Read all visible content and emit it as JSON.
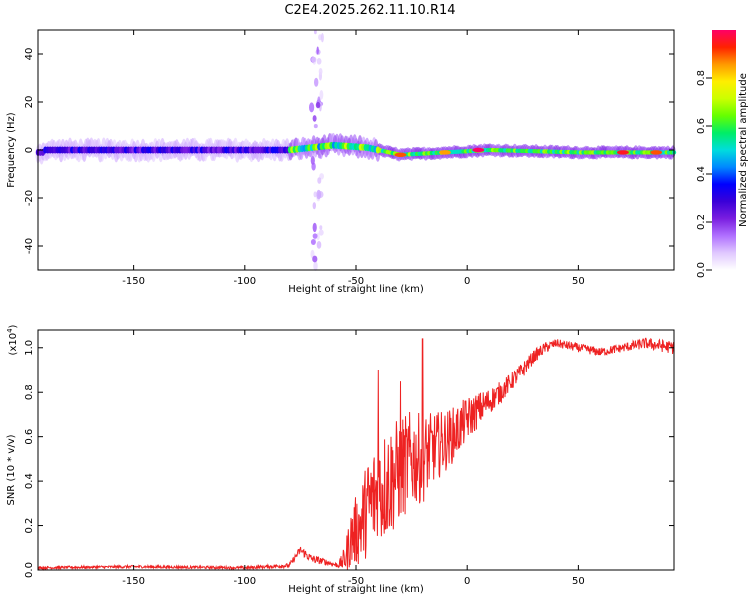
{
  "title": "C2E4.2025.262.11.10.R14",
  "chart_data": [
    {
      "type": "heatmap",
      "xlabel": "Height of straight line (km)",
      "ylabel": "Frequency (Hz)",
      "xlim": [
        -193,
        93
      ],
      "ylim": [
        -50,
        50
      ],
      "xticks": [
        -150,
        -100,
        -50,
        0,
        50
      ],
      "yticks": [
        -40,
        -20,
        0,
        20,
        40
      ],
      "colorbar": {
        "label": "Normalized spectral amplitude",
        "range": [
          0,
          1
        ],
        "ticks": [
          0.0,
          0.2,
          0.4,
          0.6,
          0.8
        ],
        "colors": [
          "#ffffff",
          "#e0c8ff",
          "#b070ff",
          "#7a1ee0",
          "#3a00d8",
          "#0000ff",
          "#0088ff",
          "#00dddd",
          "#00ee66",
          "#66ff00",
          "#ccff00",
          "#ffee00",
          "#ff9900",
          "#ff2200",
          "#ff0066"
        ]
      },
      "regions": [
        {
          "x_range": [
            -193,
            -80
          ],
          "description": "broadband noise",
          "amplitude": 0.12
        },
        {
          "x_range": [
            -70,
            -65
          ],
          "description": "vertical noise stripe",
          "amplitude": 0.08
        },
        {
          "x_range": [
            -80,
            93
          ],
          "description": "narrow signal band near 0 Hz",
          "amplitude": 0.6
        }
      ],
      "band_center": [
        {
          "x": -190,
          "f": 0
        },
        {
          "x": -80,
          "f": 0
        },
        {
          "x": -60,
          "f": 2
        },
        {
          "x": -45,
          "f": 1
        },
        {
          "x": -30,
          "f": -2
        },
        {
          "x": -10,
          "f": -1
        },
        {
          "x": 10,
          "f": 0
        },
        {
          "x": 50,
          "f": -1
        },
        {
          "x": 93,
          "f": -1
        }
      ],
      "hotspots": [
        {
          "x": 5,
          "f": 0,
          "amplitude": 1.0
        },
        {
          "x": -30,
          "f": -2,
          "amplitude": 0.9
        },
        {
          "x": -10,
          "f": -1,
          "amplitude": 0.85
        },
        {
          "x": 70,
          "f": -1,
          "amplitude": 0.95
        },
        {
          "x": 85,
          "f": -1,
          "amplitude": 0.9
        }
      ]
    },
    {
      "type": "line",
      "xlabel": "Height of straight line (km)",
      "ylabel": "SNR (10 * v/v)",
      "yscale_label": "(x10",
      "yscale_exp": "4",
      "yscale_close": ")",
      "xlim": [
        -193,
        93
      ],
      "ylim": [
        0,
        1.08
      ],
      "xticks": [
        -150,
        -100,
        -50,
        0,
        50
      ],
      "yticks": [
        0.0,
        0.2,
        0.4,
        0.6,
        0.8,
        1.0
      ],
      "color": "#ee2222",
      "series": [
        {
          "name": "SNR",
          "x": [
            -193,
            -150,
            -100,
            -80,
            -75,
            -70,
            -65,
            -58,
            -55,
            -52,
            -48,
            -45,
            -40,
            -35,
            -30,
            -25,
            -20,
            -15,
            -10,
            -5,
            0,
            5,
            10,
            15,
            20,
            25,
            30,
            35,
            40,
            50,
            60,
            70,
            80,
            93
          ],
          "y": [
            0.01,
            0.015,
            0.01,
            0.02,
            0.09,
            0.05,
            0.04,
            0.02,
            0.05,
            0.15,
            0.2,
            0.28,
            0.35,
            0.4,
            0.45,
            0.5,
            0.5,
            0.55,
            0.58,
            0.62,
            0.68,
            0.72,
            0.76,
            0.8,
            0.85,
            0.9,
            0.96,
            1.0,
            1.02,
            1.0,
            0.98,
            1.0,
            1.02,
            1.0
          ],
          "noise": [
            0.006,
            0.006,
            0.006,
            0.01,
            0.02,
            0.02,
            0.015,
            0.01,
            0.06,
            0.14,
            0.18,
            0.22,
            0.26,
            0.26,
            0.24,
            0.22,
            0.2,
            0.16,
            0.14,
            0.12,
            0.1,
            0.08,
            0.06,
            0.05,
            0.04,
            0.035,
            0.03,
            0.025,
            0.02,
            0.02,
            0.02,
            0.02,
            0.025,
            0.03
          ],
          "peaks": [
            {
              "x": -20,
              "y": 1.04
            },
            {
              "x": -30,
              "y": 0.85
            },
            {
              "x": -40,
              "y": 0.9
            }
          ]
        }
      ]
    }
  ]
}
